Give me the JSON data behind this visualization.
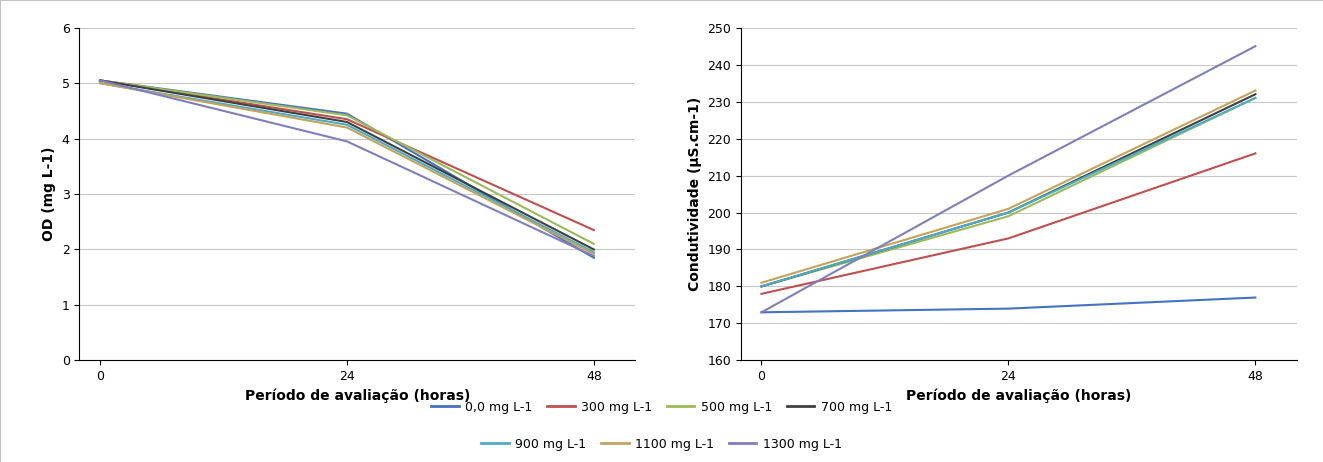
{
  "x": [
    0,
    24,
    48
  ],
  "od_series": {
    "0.0 mg L-1": [
      5.05,
      4.45,
      1.85
    ],
    "300 mg L-1": [
      5.05,
      4.35,
      2.35
    ],
    "500 mg L-1": [
      5.05,
      4.42,
      2.1
    ],
    "700 mg L-1": [
      5.05,
      4.3,
      2.0
    ],
    "900 mg L-1": [
      5.0,
      4.25,
      1.95
    ],
    "1100 mg L-1": [
      5.0,
      4.2,
      1.92
    ],
    "1300 mg L-1": [
      5.05,
      3.95,
      1.88
    ]
  },
  "cond_series": {
    "0.0 mg L-1": [
      173,
      174,
      177
    ],
    "300 mg L-1": [
      178,
      193,
      216
    ],
    "500 mg L-1": [
      180,
      199,
      231
    ],
    "700 mg L-1": [
      180,
      200,
      232
    ],
    "900 mg L-1": [
      180,
      200,
      231
    ],
    "1100 mg L-1": [
      181,
      201,
      233
    ],
    "1300 mg L-1": [
      173,
      210,
      245
    ]
  },
  "colors": {
    "0.0 mg L-1": "#4472C4",
    "300 mg L-1": "#C0504D",
    "500 mg L-1": "#9BBB59",
    "700 mg L-1": "#404040",
    "900 mg L-1": "#4BACC6",
    "1100 mg L-1": "#C4A35A",
    "1300 mg L-1": "#7F7FBF"
  },
  "legend_labels": [
    "0,0 mg L-1",
    "300 mg L-1",
    "500 mg L-1",
    "700 mg L-1",
    "900 mg L-1",
    "1100 mg L-1",
    "1300 mg L-1"
  ],
  "od_ylabel": "OD (mg L-1)",
  "cond_ylabel": "Condutividade (μS.cm-1)",
  "xlabel": "Período de avaliação (horas)",
  "od_ylim": [
    0,
    6
  ],
  "od_yticks": [
    0,
    1,
    2,
    3,
    4,
    5,
    6
  ],
  "cond_ylim": [
    160,
    250
  ],
  "cond_yticks": [
    160,
    170,
    180,
    190,
    200,
    210,
    220,
    230,
    240,
    250
  ],
  "xticks": [
    0,
    24,
    48
  ],
  "background_color": "#FFFFFF",
  "grid_color": "#C8C8C8"
}
